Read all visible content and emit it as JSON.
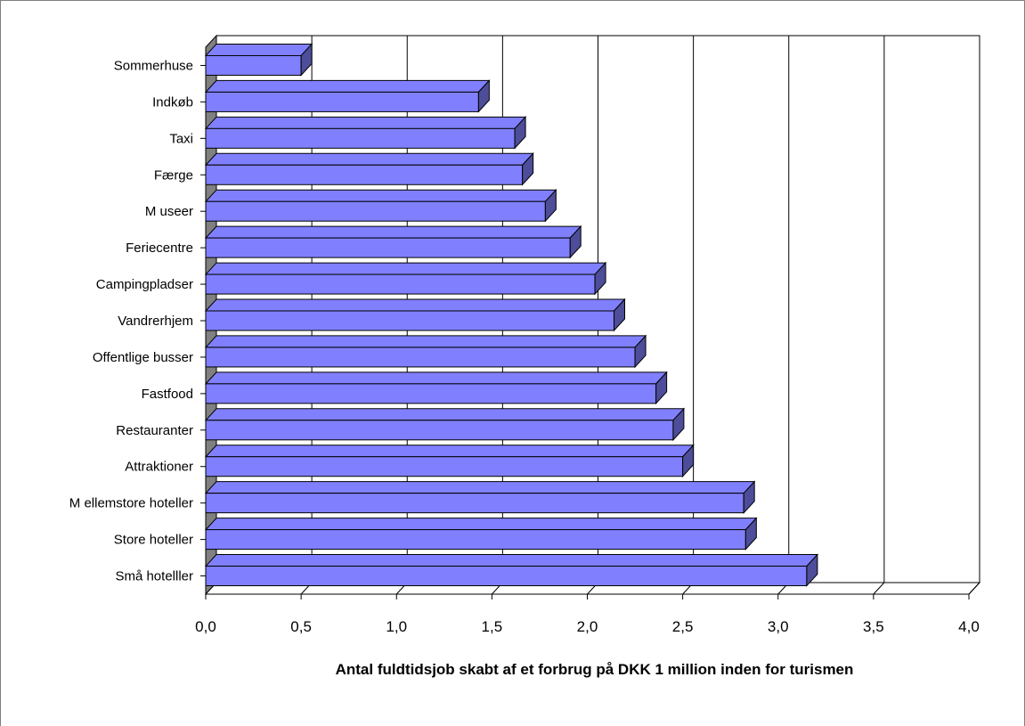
{
  "chart_data": {
    "type": "bar",
    "orientation": "horizontal",
    "style": "3d",
    "categories": [
      "Sommerhuse",
      "Indkøb",
      "Taxi",
      "Færge",
      "M useer",
      "Feriecentre",
      "Campingpladser",
      "Vandrerhjem",
      "Offentlige busser",
      "Fastfood",
      "Restauranter",
      "Attraktioner",
      "M ellemstore hoteller",
      "Store hoteller",
      "Små hotelller"
    ],
    "values": [
      0.5,
      1.43,
      1.62,
      1.66,
      1.78,
      1.91,
      2.04,
      2.14,
      2.25,
      2.36,
      2.45,
      2.5,
      2.82,
      2.83,
      3.15
    ],
    "xlabel": "Antal fuldtidsjob skabt af et forbrug på DKK 1 million inden for turismen",
    "ylabel": "",
    "xlim": [
      0,
      4
    ],
    "x_ticks": [
      "0,0",
      "0,5",
      "1,0",
      "1,5",
      "2,0",
      "2,5",
      "3,0",
      "3,5",
      "4,0"
    ],
    "grid": "vertical",
    "bar_color": "#8080ff",
    "bar_edge_color": "#000000",
    "bar_side_color": "#4d4d99",
    "wall_side_color": "#808080"
  }
}
